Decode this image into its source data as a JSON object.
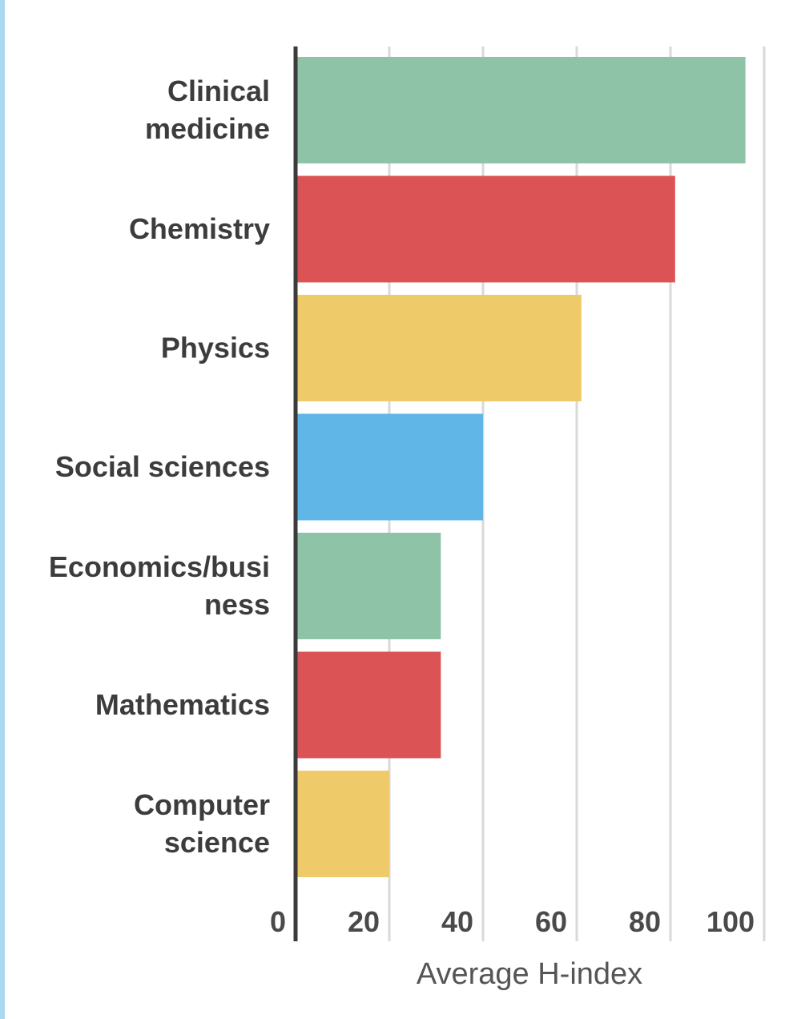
{
  "chart_data": {
    "type": "bar",
    "orientation": "horizontal",
    "categories": [
      "Clinical medicine",
      "Chemistry",
      "Physics",
      "Social sciences",
      "Economics/business",
      "Mathematics",
      "Computer science"
    ],
    "category_label_lines": [
      [
        "Clinical",
        "medicine"
      ],
      [
        "Chemistry"
      ],
      [
        "Physics"
      ],
      [
        "Social sciences"
      ],
      [
        "Economics/busi",
        "ness"
      ],
      [
        "Mathematics"
      ],
      [
        "Computer",
        "science"
      ]
    ],
    "values": [
      96,
      81,
      61,
      40,
      31,
      31,
      20
    ],
    "colors": [
      "#8fc3a8",
      "#dc5356",
      "#eeca68",
      "#60b6e6",
      "#8fc3a8",
      "#dc5356",
      "#eeca68"
    ],
    "xlabel": "Average H-index",
    "xlim": [
      0,
      100
    ],
    "xticks": [
      0,
      20,
      40,
      60,
      80,
      100
    ],
    "grid": true
  }
}
